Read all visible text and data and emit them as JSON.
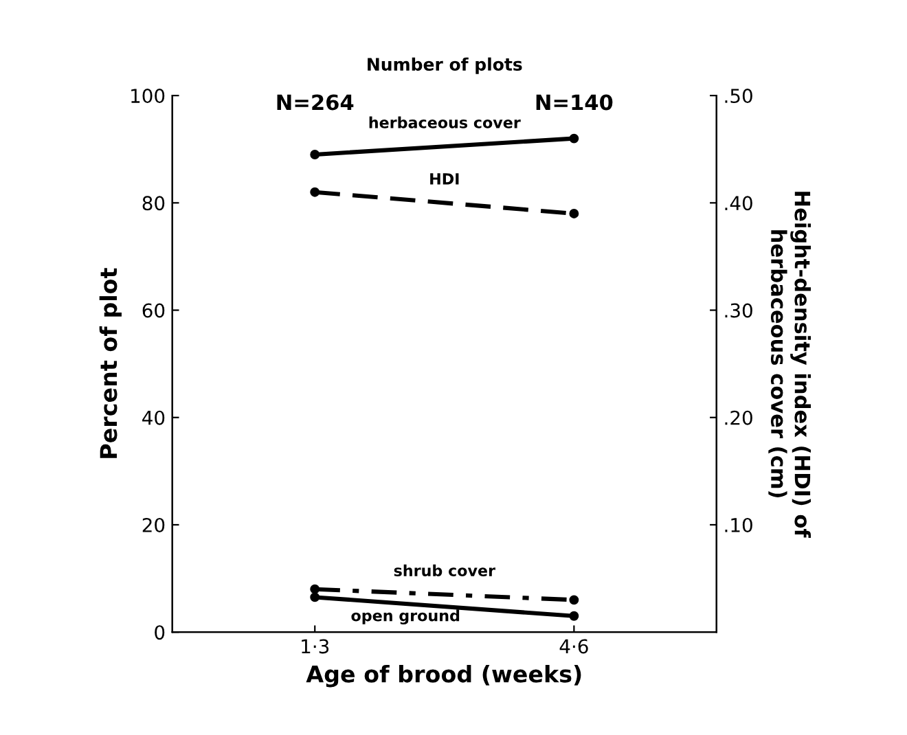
{
  "chart_data": {
    "type": "line",
    "xlabel": "Age of brood (weeks)",
    "ylabel": "Percent of plot",
    "y2label": "Height-density index (HDI) of\nherbaceous cover (cm)",
    "categories": [
      "1·3",
      "4·6"
    ],
    "series": [
      {
        "name": "herbaceous cover",
        "color": "#000000",
        "values": [
          89,
          92
        ],
        "line_style": "solid"
      },
      {
        "name": "HDI",
        "color": "#000000",
        "values": [
          0.41,
          0.39
        ],
        "axis": "y2",
        "line_style": "dashed"
      },
      {
        "name": "shrub cover",
        "color": "#000000",
        "values": [
          8,
          6
        ],
        "line_style": "dashdot"
      },
      {
        "name": "open ground",
        "color": "#000000",
        "values": [
          6.5,
          3
        ],
        "line_style": "solid"
      }
    ],
    "ylim": [
      0,
      100
    ],
    "yticks": [
      0,
      20,
      40,
      60,
      80,
      100
    ],
    "y2lim": [
      0,
      0.5
    ],
    "y2ticks": [
      {
        "value": 0.1,
        "label": ".10"
      },
      {
        "value": 0.2,
        "label": ".20"
      },
      {
        "value": 0.3,
        "label": ".30"
      },
      {
        "value": 0.4,
        "label": ".40"
      },
      {
        "value": 0.5,
        "label": ".50"
      }
    ],
    "marker": "circle",
    "legend": false,
    "grid": false,
    "annotations": [
      "Number of plots",
      "N=264",
      "N=140"
    ]
  }
}
